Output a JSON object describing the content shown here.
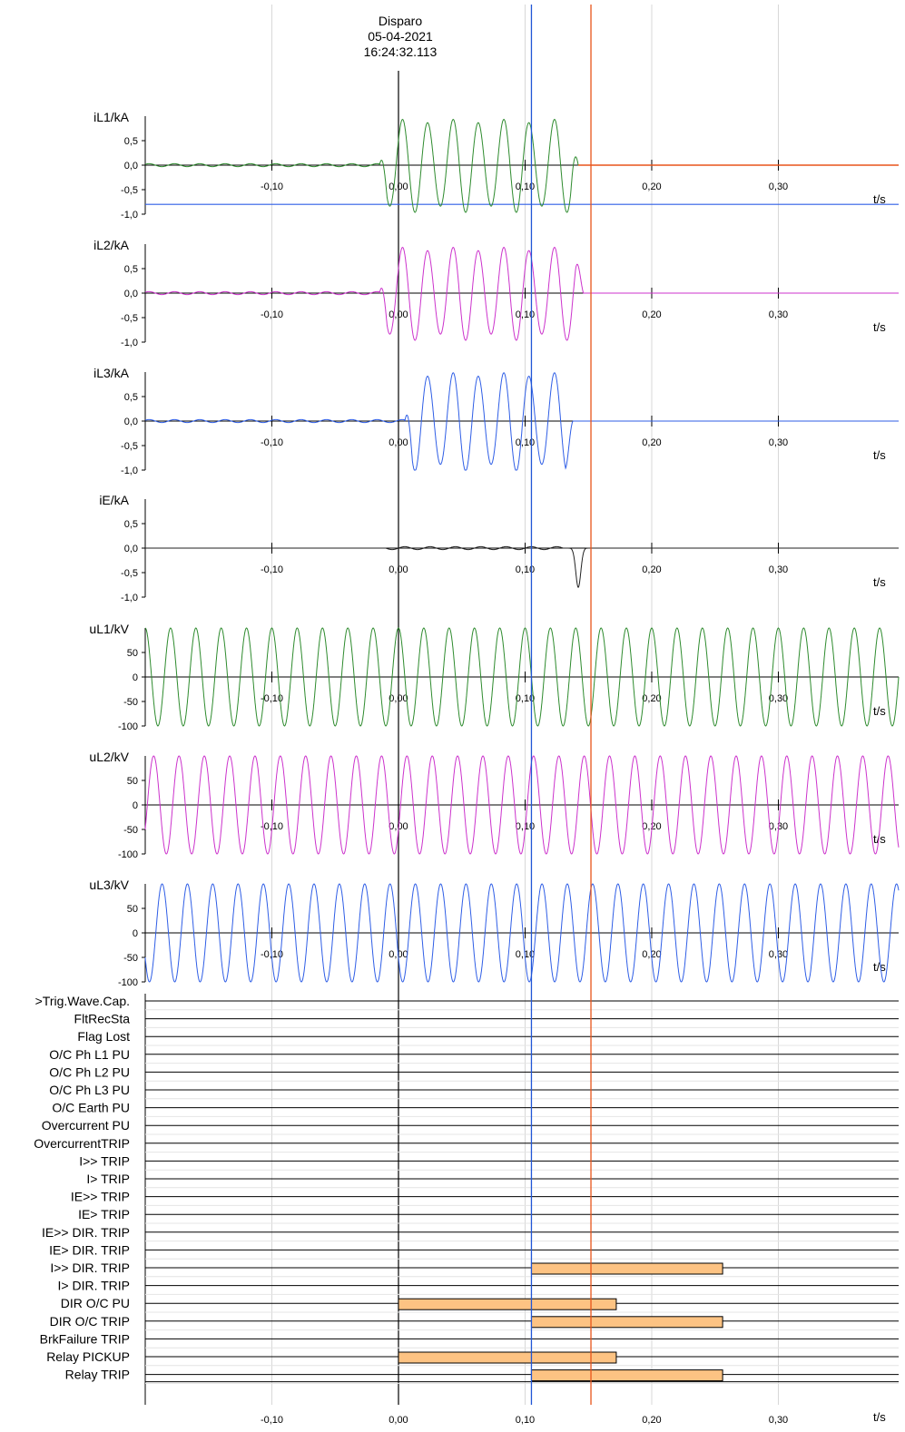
{
  "header": {
    "title": "Disparo",
    "date": "05-04-2021",
    "time": "16:24:32.113"
  },
  "colors": {
    "grid": "#d8d8d8",
    "axis": "#000000",
    "cursor_blue": "#2156d6",
    "cursor_orange": "#e8541a",
    "bar_fill": "#fdc383",
    "green": "#2e8b2e",
    "magenta": "#cc33cc",
    "blue": "#2f5ee6",
    "black": "#222222"
  },
  "chart_data": {
    "type": "line",
    "x_unit_label": "t/s",
    "xlim": [
      -0.2,
      0.395
    ],
    "x_ticks": [
      -0.1,
      0.0,
      0.1,
      0.2,
      0.3
    ],
    "x_tick_labels": [
      "-0,10",
      "0,00",
      "0,10",
      "0,20",
      "0,30"
    ],
    "trigger_time": 0.0,
    "cursors": [
      {
        "t": 0.105,
        "color": "#2156d6"
      },
      {
        "t": 0.152,
        "color": "#e8541a"
      }
    ],
    "analog": [
      {
        "name": "iL1/kA",
        "color": "#2e8b2e",
        "ylim": [
          -1.0,
          1.0
        ],
        "y_ticks": [
          -1.0,
          -0.5,
          0.0,
          0.5
        ],
        "y_tick_labels": [
          "-1,0",
          "-0,5",
          "0,0",
          "0,5"
        ],
        "prefault_amplitude": 0.03,
        "fault_amplitude": 0.9,
        "fault_start": -0.015,
        "fault_end": 0.142,
        "reference_line": {
          "value": -0.8,
          "color": "#2f5ee6"
        },
        "overlay_zero_color": "#e8541a"
      },
      {
        "name": "iL2/kA",
        "color": "#cc33cc",
        "ylim": [
          -1.0,
          1.0
        ],
        "y_ticks": [
          -1.0,
          -0.5,
          0.0,
          0.5
        ],
        "y_tick_labels": [
          "-1,0",
          "-0,5",
          "0,0",
          "0,5"
        ],
        "prefault_amplitude": 0.03,
        "fault_amplitude": 0.9,
        "fault_start": -0.015,
        "fault_end": 0.146
      },
      {
        "name": "iL3/kA",
        "color": "#2f5ee6",
        "ylim": [
          -1.0,
          1.0
        ],
        "y_ticks": [
          -1.0,
          -0.5,
          0.0,
          0.5
        ],
        "y_tick_labels": [
          "-1,0",
          "-0,5",
          "0,0",
          "0,5"
        ],
        "prefault_amplitude": 0.03,
        "fault_amplitude": 0.95,
        "fault_start": 0.005,
        "fault_end": 0.138
      },
      {
        "name": "iE/kA",
        "color": "#222222",
        "ylim": [
          -1.0,
          1.0
        ],
        "y_ticks": [
          -1.0,
          -0.5,
          0.0,
          0.5
        ],
        "y_tick_labels": [
          "-1,0",
          "-0,5",
          "0,0",
          "0,5"
        ],
        "ripple_amplitude": 0.03,
        "spike": {
          "t": 0.142,
          "value": -0.8
        }
      },
      {
        "name": "uL1/kV",
        "color": "#2e8b2e",
        "ylim": [
          -100,
          100
        ],
        "y_ticks": [
          -100,
          -50,
          0,
          50
        ],
        "y_tick_labels": [
          "-100",
          "-50",
          "0",
          "50"
        ],
        "amplitude": 100,
        "phase_deg": 90
      },
      {
        "name": "uL2/kV",
        "color": "#cc33cc",
        "ylim": [
          -100,
          100
        ],
        "y_ticks": [
          -100,
          -50,
          0,
          50
        ],
        "y_tick_labels": [
          "-100",
          "-50",
          "0",
          "50"
        ],
        "amplitude": 100,
        "phase_deg": -30
      },
      {
        "name": "uL3/kV",
        "color": "#2f5ee6",
        "ylim": [
          -100,
          100
        ],
        "y_ticks": [
          -100,
          -50,
          0,
          50
        ],
        "y_tick_labels": [
          "-100",
          "-50",
          "0",
          "50"
        ],
        "amplitude": 100,
        "phase_deg": 210
      }
    ],
    "binary": [
      {
        "name": ">Trig.Wave.Cap.",
        "intervals": []
      },
      {
        "name": "FltRecSta",
        "intervals": []
      },
      {
        "name": "Flag Lost",
        "intervals": []
      },
      {
        "name": "O/C Ph L1 PU",
        "intervals": []
      },
      {
        "name": "O/C Ph L2 PU",
        "intervals": []
      },
      {
        "name": "O/C Ph L3 PU",
        "intervals": []
      },
      {
        "name": "O/C Earth PU",
        "intervals": []
      },
      {
        "name": "Overcurrent PU",
        "intervals": []
      },
      {
        "name": "OvercurrentTRIP",
        "intervals": []
      },
      {
        "name": "I>> TRIP",
        "intervals": []
      },
      {
        "name": "I> TRIP",
        "intervals": []
      },
      {
        "name": "IE>> TRIP",
        "intervals": []
      },
      {
        "name": "IE> TRIP",
        "intervals": []
      },
      {
        "name": "IE>> DIR. TRIP",
        "intervals": []
      },
      {
        "name": "IE> DIR. TRIP",
        "intervals": []
      },
      {
        "name": "I>> DIR. TRIP",
        "intervals": [
          [
            0.105,
            0.256
          ]
        ]
      },
      {
        "name": "I> DIR. TRIP",
        "intervals": []
      },
      {
        "name": "DIR O/C PU",
        "intervals": [
          [
            0.0,
            0.172
          ]
        ]
      },
      {
        "name": "DIR O/C TRIP",
        "intervals": [
          [
            0.105,
            0.256
          ]
        ]
      },
      {
        "name": "BrkFailure TRIP",
        "intervals": []
      },
      {
        "name": "Relay PICKUP",
        "intervals": [
          [
            0.0,
            0.172
          ]
        ]
      },
      {
        "name": "Relay TRIP",
        "intervals": [
          [
            0.105,
            0.256
          ]
        ]
      }
    ]
  }
}
